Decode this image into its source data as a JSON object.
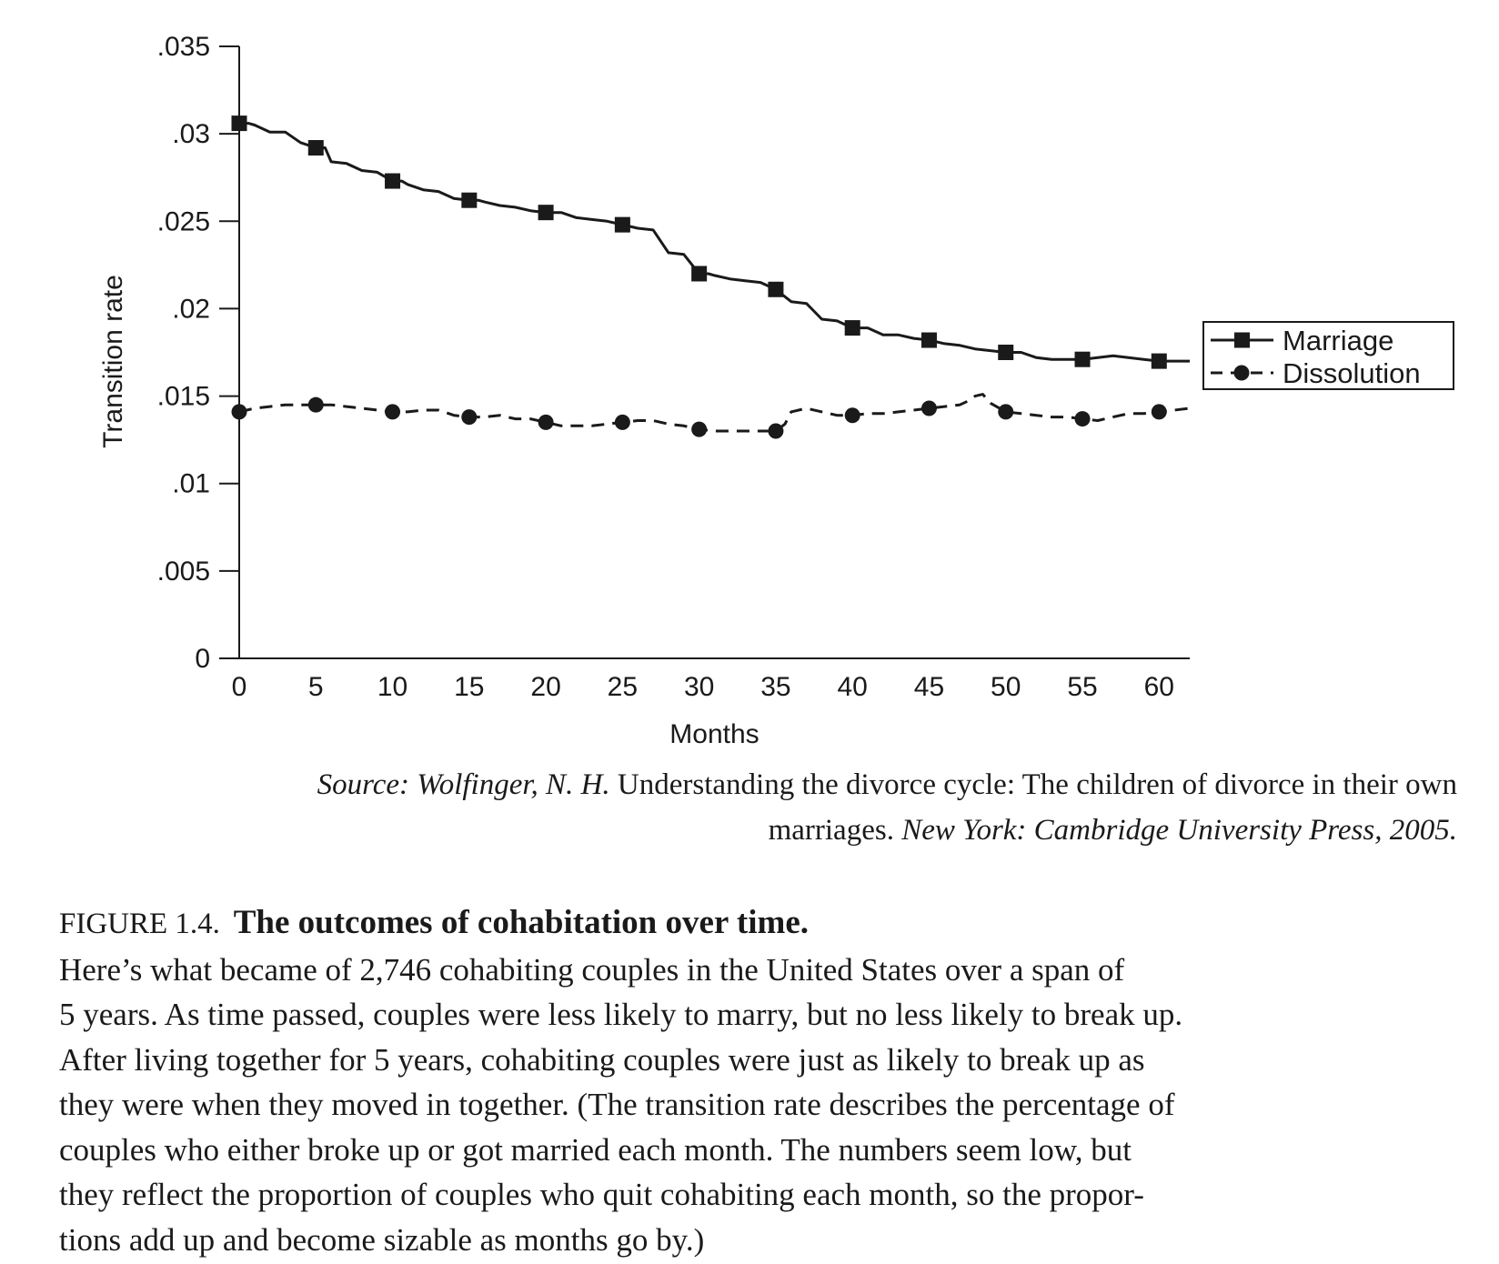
{
  "chart_data": {
    "type": "line",
    "xlabel": "Months",
    "ylabel": "Transition rate",
    "xlim": [
      0,
      62
    ],
    "ylim": [
      0,
      0.035
    ],
    "x_ticks": [
      "0",
      "5",
      "10",
      "15",
      "20",
      "25",
      "30",
      "35",
      "40",
      "45",
      "50",
      "55",
      "60"
    ],
    "y_ticks": [
      "0",
      ".005",
      ".01",
      ".015",
      ".02",
      ".025",
      ".03",
      ".035"
    ],
    "legend_position": "right",
    "grid": false,
    "series": [
      {
        "name": "Marriage",
        "line_style": "solid",
        "marker": "square",
        "marker_x": [
          0,
          5,
          10,
          15,
          20,
          25,
          30,
          35,
          40,
          45,
          50,
          55,
          60
        ],
        "marker_y": [
          0.0306,
          0.0292,
          0.0273,
          0.0262,
          0.0255,
          0.0248,
          0.022,
          0.0211,
          0.0189,
          0.0182,
          0.0175,
          0.0171,
          0.017
        ],
        "x": [
          0,
          0.6,
          1,
          2,
          3,
          4,
          5,
          5.6,
          6,
          7,
          8,
          9,
          10,
          10.6,
          11,
          12,
          13,
          14,
          15,
          15.6,
          16,
          17,
          18,
          19,
          20,
          20.6,
          21,
          22,
          23,
          24,
          25,
          26,
          27,
          28,
          29,
          30,
          30.6,
          31,
          32,
          33,
          34,
          35,
          36,
          37,
          38,
          39,
          40,
          41,
          42,
          43,
          44,
          45,
          46,
          47,
          48,
          49,
          50,
          51,
          52,
          53,
          54,
          55,
          56,
          57,
          58,
          59,
          60,
          61,
          62
        ],
        "y": [
          0.0306,
          0.0306,
          0.0305,
          0.0301,
          0.0301,
          0.0295,
          0.0292,
          0.0292,
          0.0284,
          0.0283,
          0.0279,
          0.0278,
          0.0273,
          0.0273,
          0.0271,
          0.0268,
          0.0267,
          0.0263,
          0.0262,
          0.0262,
          0.0261,
          0.0259,
          0.0258,
          0.0256,
          0.0255,
          0.0255,
          0.0255,
          0.0252,
          0.0251,
          0.025,
          0.0248,
          0.0246,
          0.0245,
          0.0232,
          0.0231,
          0.022,
          0.022,
          0.0219,
          0.0217,
          0.0216,
          0.0215,
          0.0211,
          0.0204,
          0.0203,
          0.0194,
          0.0193,
          0.0189,
          0.0189,
          0.0185,
          0.0185,
          0.0183,
          0.0182,
          0.018,
          0.0179,
          0.0177,
          0.0176,
          0.0175,
          0.0175,
          0.0172,
          0.0171,
          0.0171,
          0.0171,
          0.0172,
          0.0173,
          0.0172,
          0.0171,
          0.017,
          0.017,
          0.017
        ]
      },
      {
        "name": "Dissolution",
        "line_style": "dashed",
        "marker": "circle",
        "marker_x": [
          0,
          5,
          10,
          15,
          20,
          25,
          30,
          35,
          40,
          45,
          50,
          55,
          60
        ],
        "marker_y": [
          0.0141,
          0.0145,
          0.0141,
          0.0138,
          0.0135,
          0.0135,
          0.0131,
          0.013,
          0.0139,
          0.0143,
          0.0141,
          0.0137,
          0.0141
        ],
        "x": [
          0,
          1,
          2,
          3,
          4,
          5,
          6,
          7,
          8,
          9,
          10,
          11,
          12,
          13,
          14,
          15,
          16,
          17,
          18,
          19,
          20,
          21,
          22,
          23,
          24,
          25,
          26,
          27,
          28,
          29,
          30,
          31,
          32,
          33,
          34,
          35,
          35.6,
          36,
          37,
          38,
          39,
          40,
          41,
          42,
          43,
          44,
          45,
          46,
          47,
          47.5,
          48,
          48.5,
          49,
          50,
          51,
          52,
          53,
          54,
          55,
          56,
          57,
          58,
          59,
          60,
          61,
          62
        ],
        "y": [
          0.0141,
          0.0143,
          0.0144,
          0.0145,
          0.0145,
          0.0145,
          0.0145,
          0.0144,
          0.0143,
          0.0142,
          0.0141,
          0.0141,
          0.0142,
          0.0142,
          0.0139,
          0.0138,
          0.0138,
          0.0139,
          0.0137,
          0.0137,
          0.0135,
          0.0133,
          0.0133,
          0.0133,
          0.0134,
          0.0135,
          0.0136,
          0.0136,
          0.0134,
          0.0133,
          0.0131,
          0.013,
          0.013,
          0.013,
          0.013,
          0.013,
          0.0134,
          0.0141,
          0.0143,
          0.0141,
          0.0139,
          0.0139,
          0.014,
          0.014,
          0.0141,
          0.0142,
          0.0143,
          0.0144,
          0.0145,
          0.0147,
          0.015,
          0.0151,
          0.0146,
          0.0141,
          0.014,
          0.0139,
          0.0138,
          0.0138,
          0.0137,
          0.0136,
          0.0138,
          0.014,
          0.014,
          0.0141,
          0.0142,
          0.0143
        ]
      }
    ]
  },
  "source": {
    "prefix_italic": "Source: Wolfinger, N. H.",
    "title_roman": "Understanding the divorce cycle: The children of divorce in their own marriages.",
    "suffix_italic": "New York: Cambridge University Press, 2005."
  },
  "caption": {
    "label": "FIGURE 1.4.",
    "title": "The outcomes of cohabitation over time.",
    "text": "Here’s what became of 2,746 cohabiting couples in the United States over a span of\n5 years. As time passed, couples were less likely to marry, but no less likely to break up.\nAfter living together for 5 years, cohabiting couples were just as likely to break up as\nthey were when they moved in together. (The transition rate describes the percentage of\ncouples who either broke up or got married each month. The numbers seem low, but\nthey reflect the proportion of couples who quit cohabiting each month, so the propor-\ntions add up and become sizable as months go by.)"
  }
}
